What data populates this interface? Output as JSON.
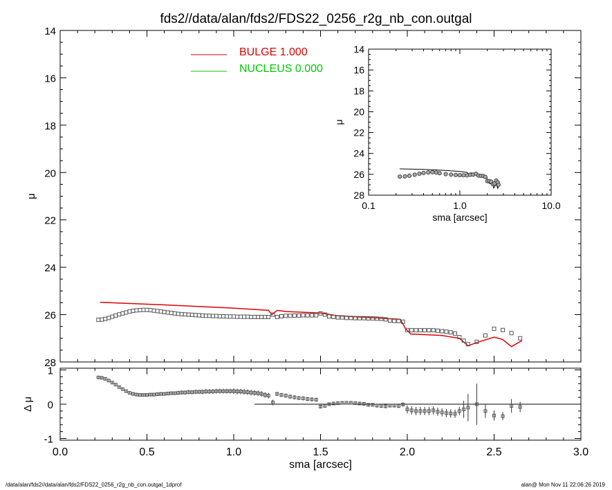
{
  "title": "fds2//data/alan/fds2/FDS22_0256_r2g_nb_con.outgal",
  "footer": {
    "left": "/data/alan/fds2//data/alan/fds2/FDS22_0256_r2g_nb_con.outgal_1dprof",
    "right": "alan@  Mon Nov 11 22:06:26 2019"
  },
  "colors": {
    "bulge": "#e00000",
    "nucleus": "#00cc00",
    "points": "#555555",
    "axes": "#000000"
  },
  "chart_data": [
    {
      "id": "main",
      "type": "scatter",
      "title": "fds2//data/alan/fds2/FDS22_0256_r2g_nb_con.outgal",
      "ylabel": "μ",
      "xlim": [
        0.0,
        3.0
      ],
      "ylim": [
        28,
        14
      ],
      "yticks": [
        "14",
        "16",
        "18",
        "20",
        "22",
        "24",
        "26",
        "28"
      ],
      "legend_placement": "top-left-center",
      "legend": [
        {
          "name": "BULGE",
          "value": "1.000",
          "label": "BULGE  1.000",
          "color": "#e00000"
        },
        {
          "name": "NUCLEUS",
          "value": "0.000",
          "label": "NUCLEUS  0.000",
          "color": "#00cc00"
        }
      ],
      "series": [
        {
          "name": "BULGE",
          "style": "line",
          "x": [
            0.23,
            0.4,
            0.6,
            0.8,
            1.0,
            1.2,
            1.22,
            1.25,
            1.3,
            1.5,
            1.6,
            1.8,
            1.96,
            1.99,
            2.02,
            2.2,
            2.3,
            2.35,
            2.4,
            2.5,
            2.55,
            2.6,
            2.66
          ],
          "y": [
            25.48,
            25.53,
            25.59,
            25.66,
            25.73,
            25.82,
            26.0,
            25.82,
            25.87,
            25.93,
            26.05,
            26.13,
            26.2,
            26.6,
            26.82,
            26.88,
            27.0,
            27.32,
            27.18,
            26.95,
            27.05,
            27.35,
            27.1
          ]
        },
        {
          "name": "data",
          "style": "markers",
          "x": [
            0.22,
            0.24,
            0.26,
            0.28,
            0.3,
            0.32,
            0.34,
            0.36,
            0.38,
            0.4,
            0.42,
            0.44,
            0.46,
            0.48,
            0.5,
            0.52,
            0.54,
            0.56,
            0.58,
            0.6,
            0.62,
            0.64,
            0.66,
            0.68,
            0.7,
            0.72,
            0.74,
            0.76,
            0.78,
            0.8,
            0.82,
            0.84,
            0.86,
            0.88,
            0.9,
            0.92,
            0.94,
            0.96,
            0.98,
            1.0,
            1.02,
            1.04,
            1.06,
            1.08,
            1.1,
            1.12,
            1.14,
            1.16,
            1.18,
            1.2,
            1.225,
            1.25,
            1.275,
            1.3,
            1.325,
            1.35,
            1.375,
            1.4,
            1.425,
            1.45,
            1.475,
            1.5,
            1.525,
            1.55,
            1.575,
            1.6,
            1.625,
            1.65,
            1.675,
            1.7,
            1.725,
            1.75,
            1.775,
            1.8,
            1.825,
            1.85,
            1.875,
            1.9,
            1.925,
            1.95,
            1.975,
            2.0,
            2.025,
            2.05,
            2.075,
            2.1,
            2.125,
            2.15,
            2.175,
            2.2,
            2.225,
            2.25,
            2.275,
            2.3,
            2.325,
            2.35,
            2.4,
            2.45,
            2.5,
            2.55,
            2.6,
            2.65
          ],
          "y": [
            26.22,
            26.21,
            26.18,
            26.14,
            26.09,
            26.04,
            25.99,
            25.95,
            25.91,
            25.87,
            25.84,
            25.82,
            25.81,
            25.8,
            25.8,
            25.81,
            25.83,
            25.85,
            25.87,
            25.89,
            25.91,
            25.93,
            25.95,
            25.97,
            25.98,
            25.99,
            26.0,
            26.01,
            26.02,
            26.03,
            26.04,
            26.05,
            26.05,
            26.06,
            26.06,
            26.07,
            26.07,
            26.08,
            26.08,
            26.08,
            26.09,
            26.09,
            26.09,
            26.09,
            26.1,
            26.1,
            26.1,
            26.1,
            26.1,
            26.1,
            26.0,
            26.1,
            26.07,
            26.05,
            26.05,
            26.04,
            26.04,
            26.03,
            26.03,
            26.03,
            26.03,
            25.95,
            26.0,
            26.08,
            26.1,
            26.12,
            26.12,
            26.14,
            26.14,
            26.15,
            26.15,
            26.15,
            26.16,
            26.16,
            26.17,
            26.18,
            26.2,
            26.25,
            26.27,
            26.27,
            26.3,
            26.65,
            26.66,
            26.66,
            26.66,
            26.66,
            26.66,
            26.66,
            26.68,
            26.7,
            26.72,
            26.75,
            26.8,
            26.95,
            27.1,
            27.25,
            27.15,
            26.88,
            26.6,
            26.65,
            26.78,
            27.0
          ]
        }
      ]
    },
    {
      "id": "residual",
      "type": "scatter",
      "xlabel": "sma [arcsec]",
      "ylabel": "Δ μ",
      "xlim": [
        0.0,
        3.0
      ],
      "ylim": [
        -1.05,
        1.05
      ],
      "xticks": [
        "0.0",
        "0.5",
        "1.0",
        "1.5",
        "2.0",
        "2.5",
        "3.0"
      ],
      "yticks": [
        "1",
        "0",
        "-1"
      ],
      "zero_line_from": 1.12,
      "series": [
        {
          "name": "residual",
          "x": [
            0.22,
            0.24,
            0.26,
            0.28,
            0.3,
            0.32,
            0.34,
            0.36,
            0.38,
            0.4,
            0.42,
            0.44,
            0.46,
            0.48,
            0.5,
            0.52,
            0.54,
            0.56,
            0.58,
            0.6,
            0.62,
            0.64,
            0.66,
            0.68,
            0.7,
            0.72,
            0.74,
            0.76,
            0.78,
            0.8,
            0.82,
            0.84,
            0.86,
            0.88,
            0.9,
            0.92,
            0.94,
            0.96,
            0.98,
            1.0,
            1.02,
            1.04,
            1.06,
            1.08,
            1.1,
            1.12,
            1.14,
            1.16,
            1.18,
            1.2,
            1.225,
            1.25,
            1.275,
            1.3,
            1.325,
            1.35,
            1.375,
            1.4,
            1.425,
            1.45,
            1.475,
            1.5,
            1.525,
            1.55,
            1.575,
            1.6,
            1.625,
            1.65,
            1.675,
            1.7,
            1.725,
            1.75,
            1.775,
            1.8,
            1.825,
            1.85,
            1.875,
            1.9,
            1.925,
            1.95,
            1.975,
            2.0,
            2.025,
            2.05,
            2.075,
            2.1,
            2.125,
            2.15,
            2.175,
            2.2,
            2.225,
            2.25,
            2.275,
            2.3,
            2.325,
            2.35,
            2.4,
            2.45,
            2.5,
            2.55,
            2.6,
            2.65
          ],
          "y": [
            0.78,
            0.77,
            0.74,
            0.69,
            0.63,
            0.57,
            0.5,
            0.44,
            0.38,
            0.33,
            0.3,
            0.28,
            0.27,
            0.27,
            0.27,
            0.28,
            0.28,
            0.29,
            0.3,
            0.3,
            0.31,
            0.32,
            0.32,
            0.33,
            0.34,
            0.34,
            0.35,
            0.35,
            0.36,
            0.36,
            0.36,
            0.37,
            0.37,
            0.37,
            0.38,
            0.38,
            0.38,
            0.38,
            0.38,
            0.38,
            0.37,
            0.37,
            0.36,
            0.35,
            0.34,
            0.33,
            0.32,
            0.3,
            0.27,
            0.25,
            0.05,
            0.3,
            0.27,
            0.25,
            0.22,
            0.2,
            0.18,
            0.17,
            0.15,
            0.14,
            0.13,
            -0.07,
            -0.05,
            0.0,
            0.02,
            0.03,
            0.04,
            0.04,
            0.04,
            0.03,
            0.02,
            0.01,
            -0.02,
            -0.02,
            -0.04,
            -0.05,
            -0.06,
            -0.04,
            -0.04,
            -0.05,
            -0.01,
            -0.15,
            -0.18,
            -0.2,
            -0.2,
            -0.2,
            -0.2,
            -0.18,
            -0.22,
            -0.24,
            -0.26,
            -0.27,
            -0.28,
            -0.2,
            -0.15,
            -0.1,
            0.0,
            -0.2,
            -0.33,
            -0.35,
            -0.05,
            -0.08
          ],
          "err": [
            0.03,
            0.03,
            0.03,
            0.03,
            0.03,
            0.03,
            0.03,
            0.03,
            0.03,
            0.03,
            0.04,
            0.04,
            0.04,
            0.04,
            0.04,
            0.04,
            0.05,
            0.05,
            0.05,
            0.05,
            0.05,
            0.05,
            0.05,
            0.06,
            0.06,
            0.06,
            0.06,
            0.06,
            0.06,
            0.06,
            0.07,
            0.07,
            0.07,
            0.07,
            0.07,
            0.07,
            0.07,
            0.07,
            0.07,
            0.08,
            0.08,
            0.08,
            0.08,
            0.08,
            0.08,
            0.08,
            0.08,
            0.08,
            0.08,
            0.08,
            0.08,
            0.06,
            0.06,
            0.06,
            0.06,
            0.06,
            0.06,
            0.06,
            0.06,
            0.06,
            0.06,
            0.05,
            0.05,
            0.05,
            0.05,
            0.05,
            0.05,
            0.05,
            0.05,
            0.05,
            0.05,
            0.05,
            0.05,
            0.05,
            0.06,
            0.06,
            0.06,
            0.06,
            0.06,
            0.06,
            0.06,
            0.12,
            0.12,
            0.12,
            0.12,
            0.12,
            0.12,
            0.12,
            0.12,
            0.12,
            0.12,
            0.12,
            0.12,
            0.12,
            0.25,
            0.4,
            0.6,
            0.2,
            0.15,
            0.12,
            0.2,
            0.15
          ]
        }
      ]
    },
    {
      "id": "inset",
      "type": "scatter",
      "xlabel": "sma [arcsec]",
      "ylabel": "μ",
      "xscale": "log",
      "xlim": [
        0.1,
        10.0
      ],
      "ylim": [
        28,
        14
      ],
      "xticks": [
        "0.1",
        "1.0",
        "10.0"
      ],
      "yticks": [
        "14",
        "16",
        "18",
        "20",
        "22",
        "24",
        "26",
        "28"
      ],
      "series": [
        {
          "name": "BULGE",
          "style": "line",
          "x": [
            0.22,
            0.4,
            0.7,
            1.0,
            1.2,
            1.25,
            1.3,
            1.5,
            1.8,
            1.97,
            2.02,
            2.3,
            2.35,
            2.5,
            2.6,
            2.66
          ],
          "y": [
            25.48,
            25.53,
            25.63,
            25.73,
            25.82,
            26.0,
            25.85,
            25.93,
            26.13,
            26.2,
            26.8,
            27.0,
            27.32,
            26.95,
            27.35,
            27.1
          ]
        },
        {
          "name": "data",
          "style": "markers",
          "x": [
            0.22,
            0.25,
            0.28,
            0.32,
            0.36,
            0.4,
            0.45,
            0.5,
            0.55,
            0.6,
            0.7,
            0.8,
            0.9,
            1.0,
            1.1,
            1.2,
            1.3,
            1.4,
            1.5,
            1.6,
            1.7,
            1.8,
            1.9,
            2.0,
            2.1,
            2.2,
            2.3,
            2.4,
            2.5,
            2.6,
            2.65
          ],
          "y": [
            26.22,
            26.2,
            26.14,
            26.04,
            25.95,
            25.87,
            25.82,
            25.8,
            25.83,
            25.89,
            25.98,
            26.03,
            26.06,
            26.08,
            26.09,
            26.1,
            26.05,
            26.03,
            25.95,
            26.12,
            26.15,
            26.16,
            26.25,
            26.65,
            26.66,
            26.7,
            26.95,
            26.88,
            26.6,
            26.78,
            27.0
          ]
        }
      ]
    }
  ]
}
